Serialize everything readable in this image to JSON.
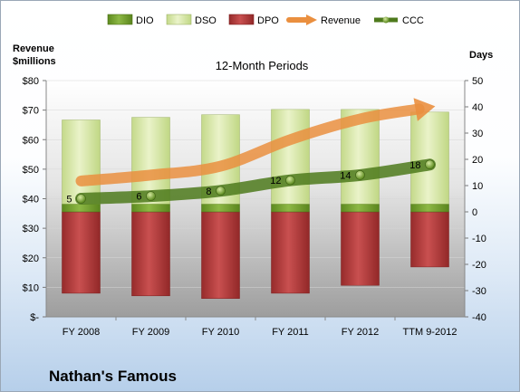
{
  "company": "Nathan's Famous",
  "chart_data": {
    "type": "bar",
    "title": "12-Month Periods",
    "categories": [
      "FY 2008",
      "FY 2009",
      "FY 2010",
      "FY 2011",
      "FY 2012",
      "TTM 9-2012"
    ],
    "y_left_label_line1": "Revenue",
    "y_left_label_line2": "$millions",
    "y_right_label": "Days",
    "y_left_ticks": [
      "$-",
      "$10",
      "$20",
      "$30",
      "$40",
      "$50",
      "$60",
      "$70",
      "$80"
    ],
    "y_left_range": [
      0,
      80
    ],
    "y_right_ticks": [
      "-40",
      "-30",
      "-20",
      "-10",
      "0",
      "10",
      "20",
      "30",
      "40",
      "50"
    ],
    "y_right_range": [
      -40,
      50
    ],
    "legend_position": "top",
    "series": [
      {
        "name": "DIO",
        "axis": "right",
        "color": "#6f9a2c",
        "values": [
          3,
          3,
          3,
          3,
          3,
          3
        ]
      },
      {
        "name": "DSO",
        "axis": "right",
        "color": "#d9e8a4",
        "values": [
          32,
          33,
          34,
          36,
          36,
          35
        ]
      },
      {
        "name": "DPO",
        "axis": "right",
        "color": "#b13a3a",
        "values": [
          -31,
          -32,
          -33,
          -31,
          -28,
          -21
        ]
      },
      {
        "name": "Revenue",
        "axis": "left",
        "color": "#ea8f3f",
        "values": [
          46,
          48,
          51,
          60,
          67,
          71
        ]
      },
      {
        "name": "CCC",
        "axis": "right",
        "color": "#4e7a1c",
        "values": [
          5,
          6,
          8,
          12,
          14,
          18
        ],
        "labels": [
          "5",
          "6",
          "8",
          "12",
          "14",
          "18"
        ]
      }
    ]
  },
  "colors": {
    "dio": "#6f9a2c",
    "dso": "#d9e8a4",
    "dpo": "#b13a3a",
    "revenue": "#ea8f3f",
    "ccc": "#4e7a1c"
  }
}
